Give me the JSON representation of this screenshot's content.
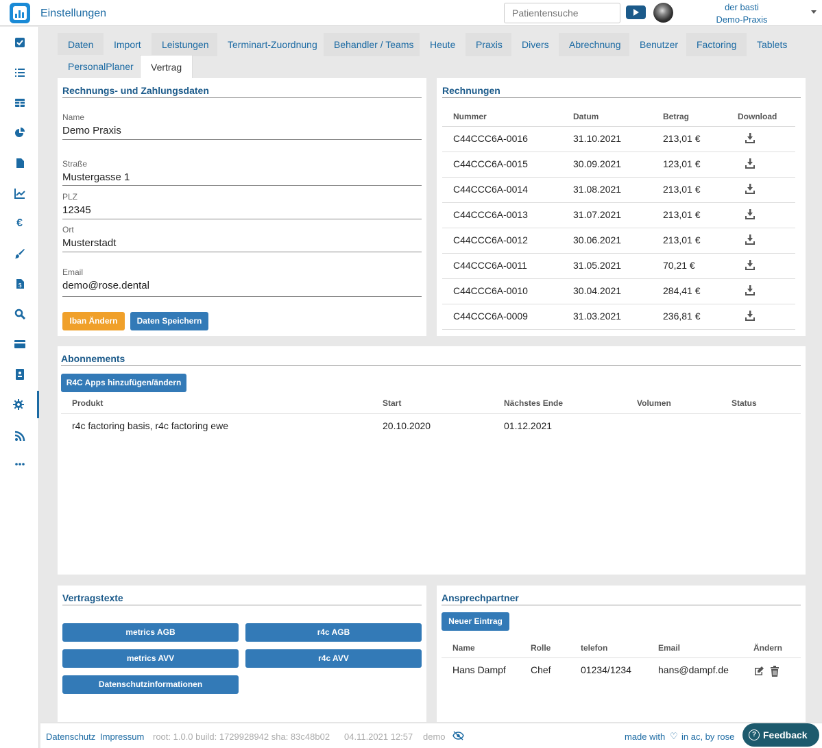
{
  "app": {
    "title": "Einstellungen"
  },
  "header": {
    "search_placeholder": "Patientensuche",
    "user_name": "der basti",
    "practice": "Demo-Praxis"
  },
  "sidebar": {
    "items": [
      {
        "icon": "check-square-icon"
      },
      {
        "icon": "list-icon"
      },
      {
        "icon": "table-icon"
      },
      {
        "icon": "pie-chart-icon"
      },
      {
        "icon": "file-icon"
      },
      {
        "icon": "line-chart-icon"
      },
      {
        "icon": "euro-icon"
      },
      {
        "icon": "brush-icon"
      },
      {
        "icon": "invoice-icon"
      },
      {
        "icon": "search-icon"
      },
      {
        "icon": "credit-card-icon"
      },
      {
        "icon": "id-card-icon"
      },
      {
        "icon": "gear-icon",
        "active": true
      },
      {
        "icon": "rss-icon"
      },
      {
        "icon": "more-icon"
      }
    ]
  },
  "tabs": [
    "Daten",
    "Import",
    "Leistungen",
    "Terminart-Zuordnung",
    "Behandler / Teams",
    "Heute",
    "Praxis",
    "Divers",
    "Abrechnung",
    "Benutzer",
    "Factoring",
    "Tablets",
    "PersonalPlaner",
    "Vertrag"
  ],
  "billing": {
    "title": "Rechnungs- und Zahlungsdaten",
    "name_label": "Name",
    "name_value": "Demo Praxis",
    "street_label": "Straße",
    "street_value": "Mustergasse 1",
    "zip_label": "PLZ",
    "zip_value": "12345",
    "city_label": "Ort",
    "city_value": "Musterstadt",
    "email_label": "Email",
    "email_value": "demo@rose.dental",
    "iban_button": "Iban Ändern",
    "save_button": "Daten Speichern"
  },
  "invoices": {
    "title": "Rechnungen",
    "headers": [
      "Nummer",
      "Datum",
      "Betrag",
      "Download"
    ],
    "rows": [
      {
        "number": "C44CCC6A-0016",
        "date": "31.10.2021",
        "amount": "213,01 €"
      },
      {
        "number": "C44CCC6A-0015",
        "date": "30.09.2021",
        "amount": "123,01 €"
      },
      {
        "number": "C44CCC6A-0014",
        "date": "31.08.2021",
        "amount": "213,01 €"
      },
      {
        "number": "C44CCC6A-0013",
        "date": "31.07.2021",
        "amount": "213,01 €"
      },
      {
        "number": "C44CCC6A-0012",
        "date": "30.06.2021",
        "amount": "213,01 €"
      },
      {
        "number": "C44CCC6A-0011",
        "date": "31.05.2021",
        "amount": "70,21 €"
      },
      {
        "number": "C44CCC6A-0010",
        "date": "30.04.2021",
        "amount": "284,41 €"
      },
      {
        "number": "C44CCC6A-0009",
        "date": "31.03.2021",
        "amount": "236,81 €"
      }
    ]
  },
  "subscriptions": {
    "title": "Abonnements",
    "button": "R4C Apps hinzufügen/ändern",
    "headers": [
      "Produkt",
      "Start",
      "Nächstes Ende",
      "Volumen",
      "Status"
    ],
    "rows": [
      {
        "product": "r4c factoring basis, r4c factoring ewe",
        "start": "20.10.2020",
        "end": "01.12.2021",
        "volume": "",
        "status": ""
      }
    ]
  },
  "contract_texts": {
    "title": "Vertragstexte",
    "buttons": [
      "metrics AGB",
      "r4c AGB",
      "metrics AVV",
      "r4c AVV",
      "Datenschutzinformationen"
    ]
  },
  "contacts": {
    "title": "Ansprechpartner",
    "new_button": "Neuer Eintrag",
    "headers": [
      "Name",
      "Rolle",
      "telefon",
      "Email",
      "Ändern"
    ],
    "rows": [
      {
        "name": "Hans Dampf",
        "role": "Chef",
        "phone": "01234/1234",
        "email": "hans@dampf.de"
      }
    ]
  },
  "footer": {
    "privacy": "Datenschutz",
    "imprint": "Impressum",
    "build_info": "root: 1.0.0 build: 1729928942 sha: 83c48b02",
    "datetime": "04.11.2021 12:57",
    "env": "demo",
    "made_with_prefix": "made with",
    "made_with_suffix": "in ac, by rose",
    "feedback": "Feedback"
  },
  "colors": {
    "accent": "#1b6aa3",
    "button": "#337ab7",
    "orange": "#f0a02a",
    "feedback": "#1d5a6d"
  }
}
